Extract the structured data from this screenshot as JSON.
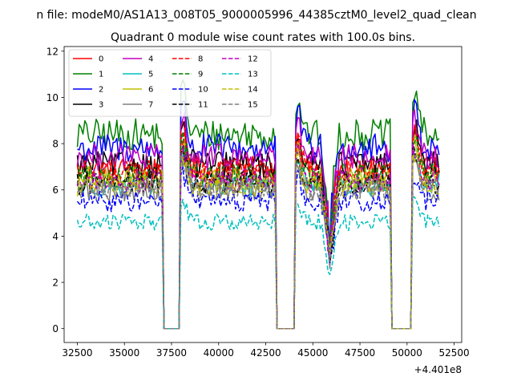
{
  "figure": {
    "suptitle": "n file: modeM0/AS1A13_008T05_9000005996_44385cztM0_level2_quad_clean"
  },
  "chart_data": {
    "type": "line",
    "title": "Quadrant 0 module wise count rates with 100.0s bins.",
    "xlabel": "",
    "ylabel": "",
    "x_offset_label": "+4.401e8",
    "xlim": [
      31800,
      52900
    ],
    "ylim": [
      -0.6,
      12.2
    ],
    "xticks": [
      32500,
      35000,
      37500,
      40000,
      42500,
      45000,
      47500,
      50000,
      52500
    ],
    "yticks": [
      0,
      2,
      4,
      6,
      8,
      10,
      12
    ],
    "legend_position": "top-left",
    "legend_columns": 4,
    "x_start": 32500,
    "x_end": 51700,
    "step": 100,
    "gaps": [
      [
        37100,
        37900
      ],
      [
        43100,
        44000
      ],
      [
        49200,
        50200
      ]
    ],
    "dip": {
      "center": 45900,
      "width": 500,
      "depth": 0.45
    },
    "peaks": [
      {
        "center": 38100,
        "amp": 0.22,
        "width": 300
      },
      {
        "center": 44200,
        "amp": 0.18,
        "width": 300
      },
      {
        "center": 50400,
        "amp": 0.22,
        "width": 300
      }
    ],
    "series": [
      {
        "name": "0",
        "color": "#ff0000",
        "dash": "solid",
        "level": 6.9
      },
      {
        "name": "1",
        "color": "#008000",
        "dash": "solid",
        "level": 8.4
      },
      {
        "name": "2",
        "color": "#0000ff",
        "dash": "solid",
        "level": 7.8
      },
      {
        "name": "3",
        "color": "#000000",
        "dash": "solid",
        "level": 7.1
      },
      {
        "name": "4",
        "color": "#bf00bf",
        "dash": "solid",
        "level": 7.4
      },
      {
        "name": "5",
        "color": "#00bfbf",
        "dash": "solid",
        "level": 6.2
      },
      {
        "name": "6",
        "color": "#bfbf00",
        "dash": "solid",
        "level": 6.5
      },
      {
        "name": "7",
        "color": "#808080",
        "dash": "solid",
        "level": 6.0
      },
      {
        "name": "8",
        "color": "#ff0000",
        "dash": "dashed",
        "level": 6.8
      },
      {
        "name": "9",
        "color": "#008000",
        "dash": "dashed",
        "level": 6.6
      },
      {
        "name": "10",
        "color": "#0000ff",
        "dash": "dashed",
        "level": 5.5
      },
      {
        "name": "11",
        "color": "#000000",
        "dash": "dashed",
        "level": 6.3
      },
      {
        "name": "12",
        "color": "#bf00bf",
        "dash": "dashed",
        "level": 6.4
      },
      {
        "name": "13",
        "color": "#00bfbf",
        "dash": "dashed",
        "level": 4.6
      },
      {
        "name": "14",
        "color": "#bfbf00",
        "dash": "dashed",
        "level": 6.2
      },
      {
        "name": "15",
        "color": "#808080",
        "dash": "dashed",
        "level": 6.0
      }
    ]
  }
}
